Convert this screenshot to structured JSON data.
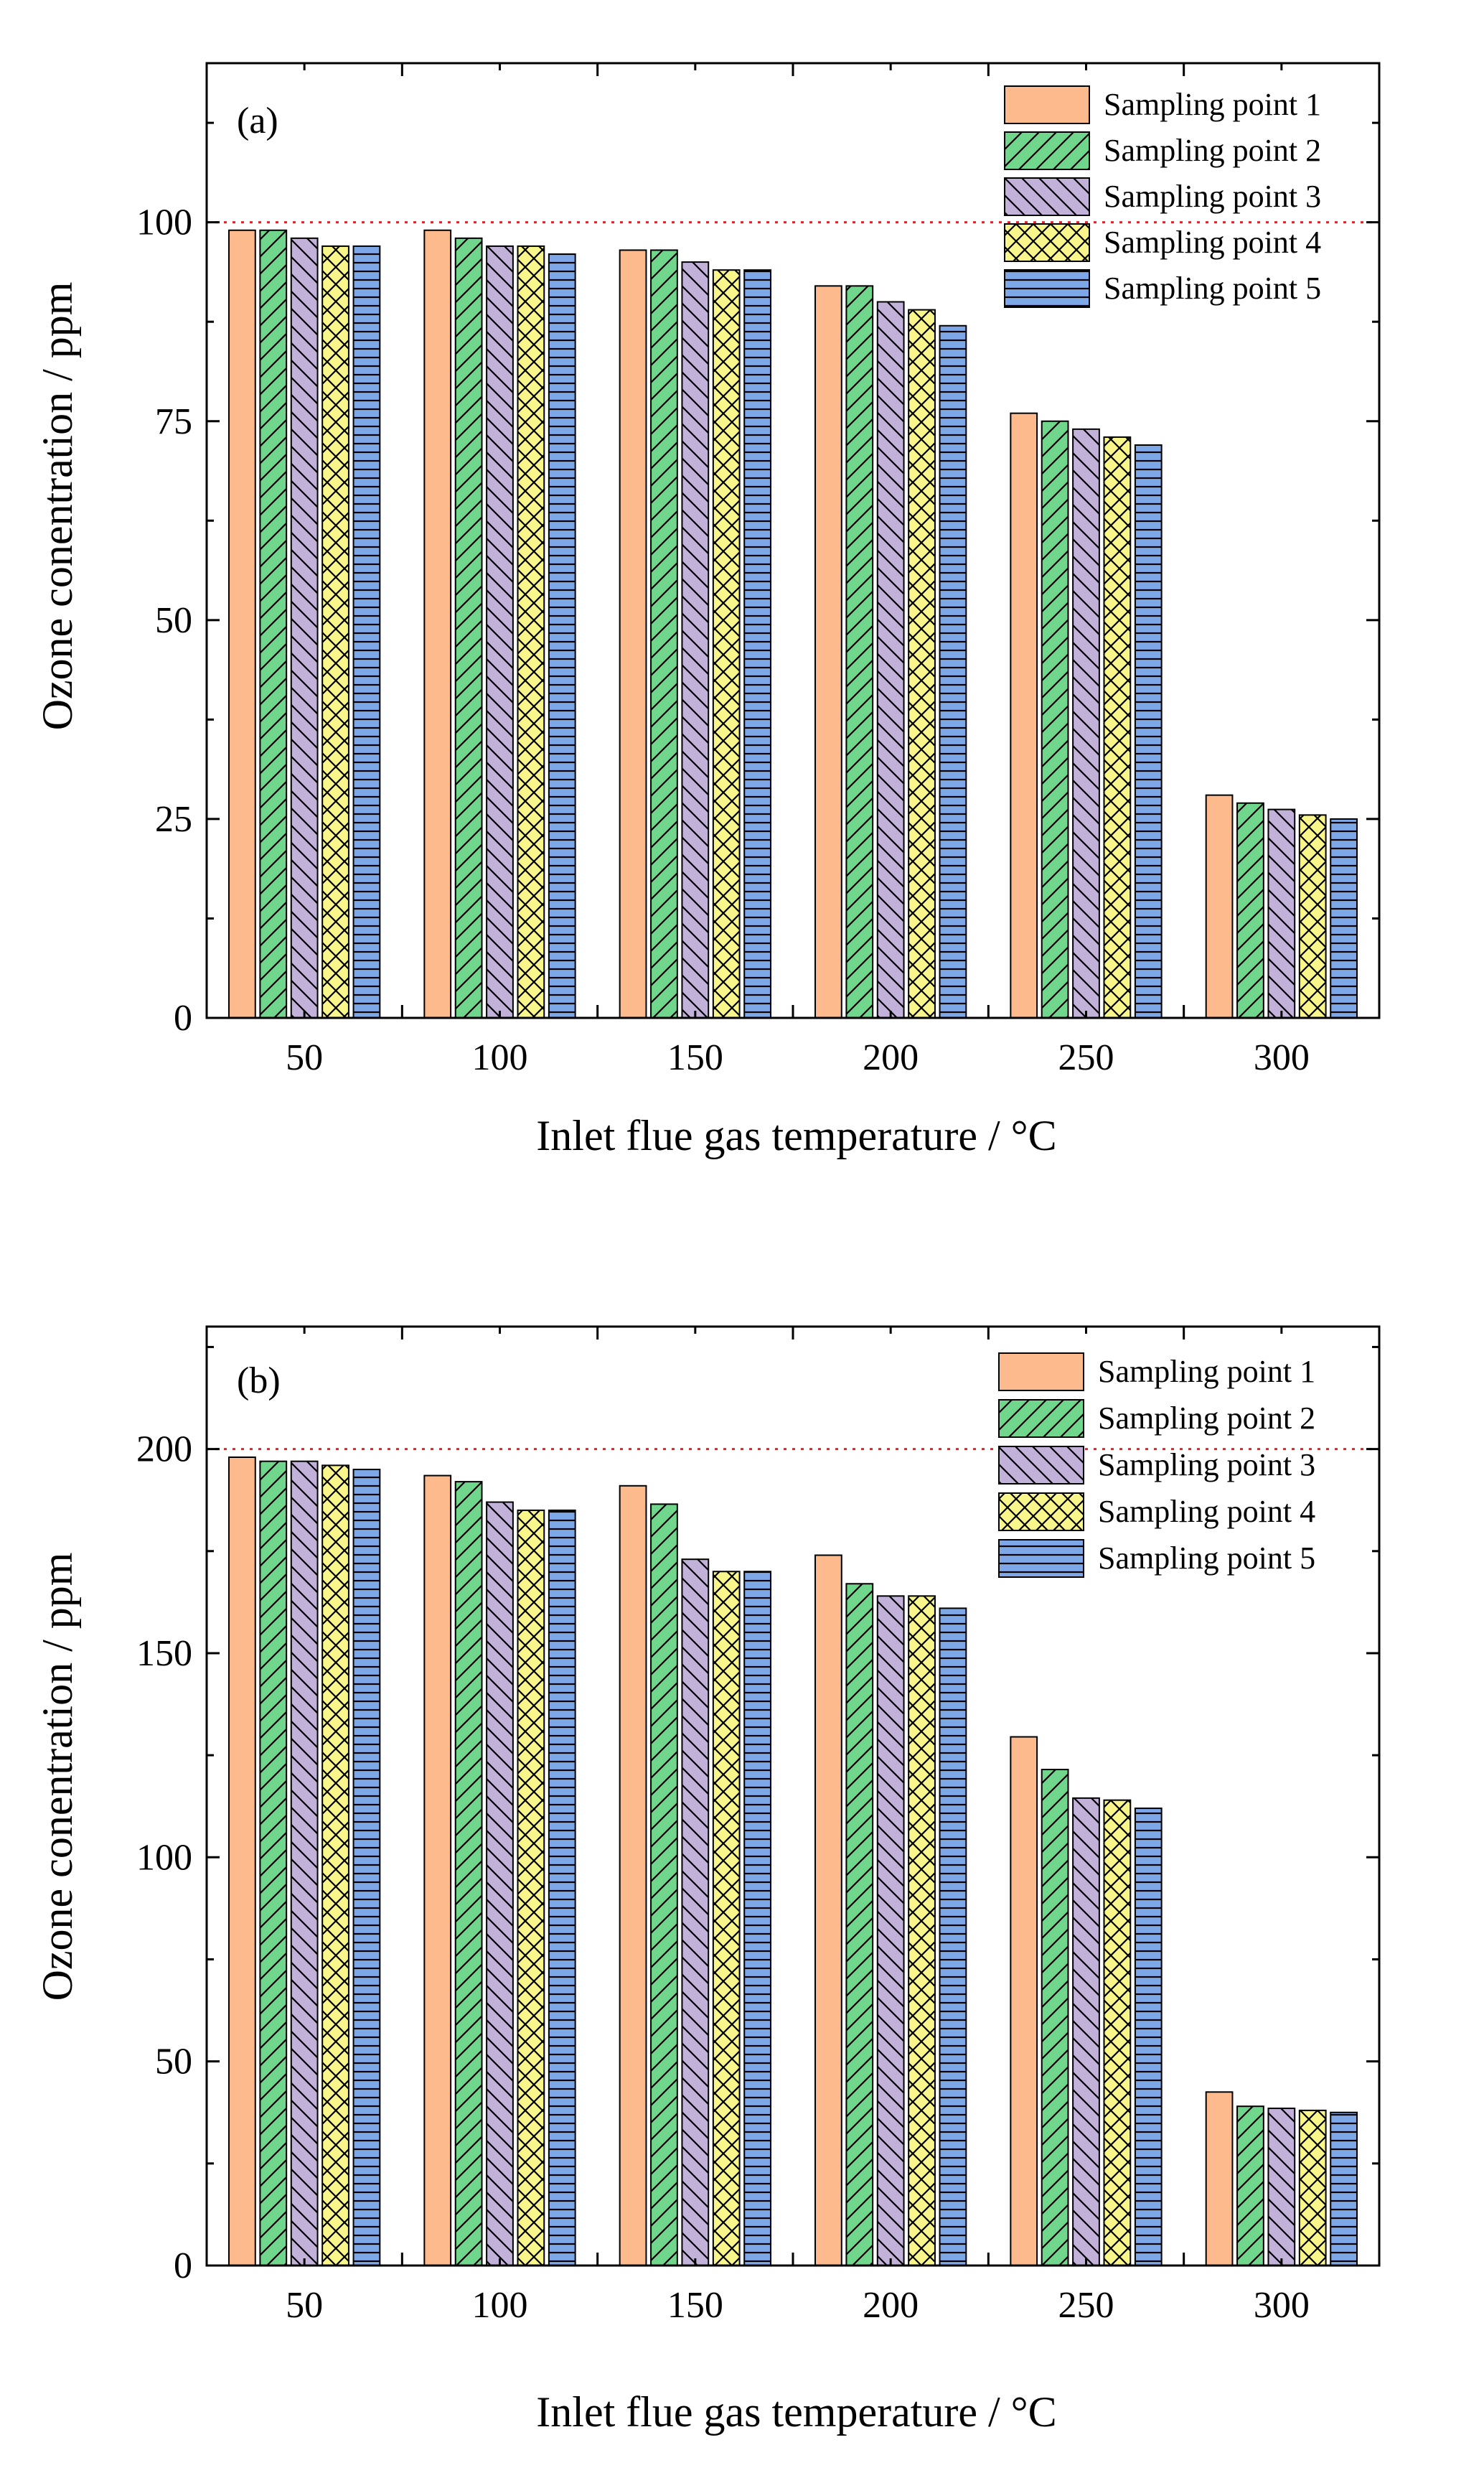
{
  "colors": {
    "series": [
      "#FDBA8C",
      "#6FD68C",
      "#C2B1D9",
      "#F8F58A",
      "#7DA7E7"
    ],
    "reference_line": "#E0242C",
    "axis": "#000000"
  },
  "chart_data": [
    {
      "type": "bar",
      "panel_label": "(a)",
      "xlabel": "Inlet flue gas temperature / °C",
      "ylabel": "Ozone conentration / ppm",
      "categories": [
        "50",
        "100",
        "150",
        "200",
        "250",
        "300"
      ],
      "ylim": [
        0,
        120
      ],
      "yticks": [
        0,
        25,
        50,
        75,
        100
      ],
      "reference_line": 100,
      "legend_position": "top-right",
      "series": [
        {
          "name": "Sampling point 1",
          "pattern": "none",
          "values": [
            99,
            99,
            96.5,
            92,
            76,
            28
          ]
        },
        {
          "name": "Sampling point 2",
          "pattern": "forward-diagonal",
          "values": [
            99,
            98,
            96.5,
            92,
            75,
            27
          ]
        },
        {
          "name": "Sampling point 3",
          "pattern": "back-diagonal",
          "values": [
            98,
            97,
            95,
            90,
            74,
            26.2
          ]
        },
        {
          "name": "Sampling point 4",
          "pattern": "crosshatch",
          "values": [
            97,
            97,
            94,
            89,
            73,
            25.5
          ]
        },
        {
          "name": "Sampling point 5",
          "pattern": "horizontal",
          "values": [
            97,
            96,
            94,
            87,
            72,
            25
          ]
        }
      ]
    },
    {
      "type": "bar",
      "panel_label": "(b)",
      "xlabel": "Inlet flue gas temperature / °C",
      "ylabel": "Ozone conentration / ppm",
      "categories": [
        "50",
        "100",
        "150",
        "200",
        "250",
        "300"
      ],
      "ylim": [
        0,
        230
      ],
      "yticks": [
        0,
        50,
        100,
        150,
        200
      ],
      "reference_line": 200,
      "legend_position": "top-right",
      "series": [
        {
          "name": "Sampling point 1",
          "pattern": "none",
          "values": [
            198,
            193.5,
            191,
            174,
            129.5,
            42.5
          ]
        },
        {
          "name": "Sampling point 2",
          "pattern": "forward-diagonal",
          "values": [
            197,
            192,
            186.5,
            167,
            121.5,
            39
          ]
        },
        {
          "name": "Sampling point 3",
          "pattern": "back-diagonal",
          "values": [
            197,
            187,
            173,
            164,
            114.5,
            38.5
          ]
        },
        {
          "name": "Sampling point 4",
          "pattern": "crosshatch",
          "values": [
            196,
            185,
            170,
            164,
            114,
            38
          ]
        },
        {
          "name": "Sampling point 5",
          "pattern": "horizontal",
          "values": [
            195,
            185,
            170,
            161,
            112,
            37.5
          ]
        }
      ]
    }
  ]
}
